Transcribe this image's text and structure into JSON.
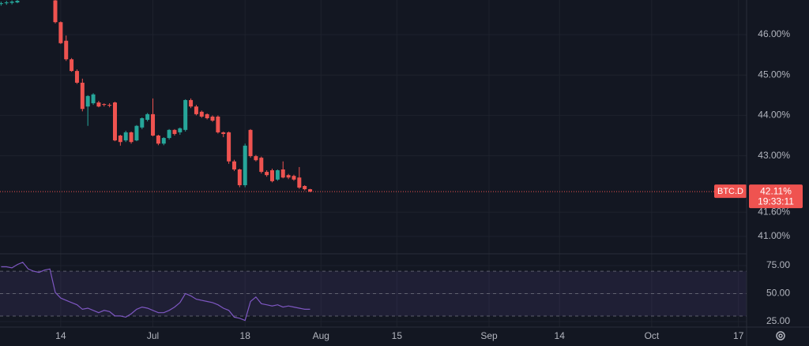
{
  "chart_data": [
    {
      "type": "candlestick",
      "symbol": "BTC.D",
      "x": [
        -11,
        -10,
        -9,
        -8,
        -7,
        -6,
        -5,
        -4,
        -3,
        -2,
        -1,
        0,
        1,
        2,
        3,
        4,
        5,
        6,
        7,
        8,
        9,
        10,
        11,
        12,
        13,
        14,
        15,
        16,
        17,
        18,
        19,
        20,
        21,
        22,
        23,
        24,
        25,
        26,
        27,
        28,
        29,
        30,
        31,
        32,
        33,
        34,
        35,
        36,
        37,
        38,
        39,
        40,
        41,
        42,
        43,
        44,
        45,
        46
      ],
      "open": [
        46.76,
        46.78,
        46.79,
        46.8,
        null,
        null,
        null,
        null,
        null,
        null,
        46.85,
        46.31,
        45.85,
        45.39,
        45.1,
        44.81,
        44.22,
        44.3,
        44.32,
        44.28,
        44.26,
        44.32,
        43.5,
        43.38,
        43.58,
        43.38,
        43.7,
        43.89,
        44.03,
        43.5,
        43.3,
        43.44,
        43.64,
        43.58,
        43.64,
        44.38,
        44.22,
        44.09,
        44.03,
        43.97,
        43.97,
        43.58,
        43.58,
        42.86,
        42.66,
        42.27,
        43.64,
        42.99,
        42.95,
        42.6,
        42.64,
        42.41,
        42.66,
        42.52,
        42.5,
        42.46,
        42.25,
        42.17
      ],
      "high": [
        46.82,
        46.84,
        46.85,
        46.86,
        null,
        null,
        null,
        null,
        null,
        null,
        46.86,
        46.33,
        45.98,
        45.42,
        45.14,
        44.91,
        44.5,
        44.55,
        44.36,
        44.3,
        44.3,
        44.34,
        43.52,
        43.62,
        43.6,
        43.76,
        43.95,
        44.06,
        44.42,
        43.52,
        43.46,
        43.66,
        43.66,
        43.7,
        44.4,
        44.42,
        44.26,
        44.12,
        44.05,
        44.0,
        44.0,
        43.6,
        43.6,
        42.9,
        42.68,
        43.3,
        43.66,
        43.02,
        42.98,
        42.64,
        42.68,
        42.66,
        42.86,
        42.55,
        42.53,
        42.72,
        42.27,
        42.18
      ],
      "low": [
        46.72,
        46.74,
        46.75,
        46.78,
        null,
        null,
        null,
        null,
        null,
        null,
        46.28,
        45.77,
        45.35,
        45.08,
        44.78,
        44.1,
        43.74,
        44.26,
        44.2,
        44.22,
        44.2,
        43.36,
        43.25,
        43.34,
        43.3,
        43.36,
        43.66,
        43.85,
        43.48,
        43.26,
        43.26,
        43.4,
        43.5,
        43.52,
        43.6,
        44.18,
        44.0,
        43.94,
        43.9,
        43.84,
        43.55,
        43.46,
        42.8,
        42.62,
        42.22,
        42.22,
        42.95,
        42.86,
        42.56,
        42.48,
        42.34,
        42.38,
        42.44,
        42.42,
        42.38,
        42.18,
        42.14,
        42.1
      ],
      "close": [
        46.78,
        46.8,
        46.82,
        46.84,
        null,
        null,
        null,
        null,
        null,
        null,
        46.31,
        45.79,
        45.39,
        45.1,
        44.81,
        44.16,
        44.48,
        44.52,
        44.22,
        44.26,
        44.24,
        43.38,
        43.34,
        43.58,
        43.34,
        43.74,
        43.93,
        44.03,
        43.5,
        43.3,
        43.44,
        43.64,
        43.54,
        43.68,
        44.38,
        44.22,
        44.03,
        43.97,
        43.93,
        43.87,
        43.58,
        43.54,
        42.86,
        42.66,
        42.27,
        43.25,
        42.99,
        42.89,
        42.6,
        42.52,
        42.37,
        42.64,
        42.46,
        42.46,
        42.41,
        42.21,
        42.17,
        42.11
      ],
      "up_color": "#26a69a",
      "down_color": "#ef5350",
      "xlim": [
        -11.2,
        126.5
      ],
      "ylim": [
        40.57,
        46.86
      ],
      "yticks": [
        {
          "value": 46,
          "label": "46.00%"
        },
        {
          "value": 45,
          "label": "45.00%"
        },
        {
          "value": 44,
          "label": "44.00%"
        },
        {
          "value": 43,
          "label": "43.00%"
        },
        {
          "value": 41.6,
          "label": "41.60%"
        },
        {
          "value": 41,
          "label": "41.00%"
        }
      ],
      "last_value": {
        "value": 42.11,
        "label": "42.11%"
      },
      "countdown": "19:33:11",
      "grid": true
    },
    {
      "type": "line",
      "color": "#7e57c2",
      "x": [
        -11,
        -10,
        -9,
        -8,
        -7,
        -6,
        -5,
        -4,
        -3,
        -2,
        -1,
        0,
        1,
        2,
        3,
        4,
        5,
        6,
        7,
        8,
        9,
        10,
        11,
        12,
        13,
        14,
        15,
        16,
        17,
        18,
        19,
        20,
        21,
        22,
        23,
        24,
        25,
        26,
        27,
        28,
        29,
        30,
        31,
        32,
        33,
        34,
        35,
        36,
        37,
        38,
        39,
        40,
        41,
        42,
        43,
        44,
        45,
        46
      ],
      "values": [
        74,
        74,
        73,
        76,
        78,
        72,
        70,
        69,
        71,
        72,
        51,
        46,
        44,
        42,
        40,
        36,
        37,
        35,
        33,
        35,
        34,
        30,
        30,
        29,
        32,
        36,
        38,
        37,
        35,
        33,
        33,
        35,
        38,
        42,
        50,
        48,
        45,
        44,
        43,
        42,
        40,
        37,
        35,
        29,
        28,
        26,
        43,
        47,
        41,
        40,
        39,
        40,
        38,
        39,
        38,
        37,
        36,
        36
      ],
      "band": [
        30,
        70
      ],
      "midline": 50,
      "xlim": [
        -11.2,
        126.5
      ],
      "xticks": [
        {
          "value": 0,
          "label": "14"
        },
        {
          "value": 17,
          "label": "Jul"
        },
        {
          "value": 34,
          "label": "18"
        },
        {
          "value": 48,
          "label": "Aug"
        },
        {
          "value": 62,
          "label": "15"
        },
        {
          "value": 79,
          "label": "Sep"
        },
        {
          "value": 92,
          "label": "14"
        },
        {
          "value": 109,
          "label": "Oct"
        },
        {
          "value": 125,
          "label": "17"
        }
      ],
      "ylim": [
        20.1,
        85.6
      ],
      "yticks": [
        {
          "value": 75,
          "label": "75.00"
        },
        {
          "value": 50,
          "label": "50.00"
        },
        {
          "value": 25,
          "label": "25.00"
        }
      ],
      "grid": true
    }
  ]
}
